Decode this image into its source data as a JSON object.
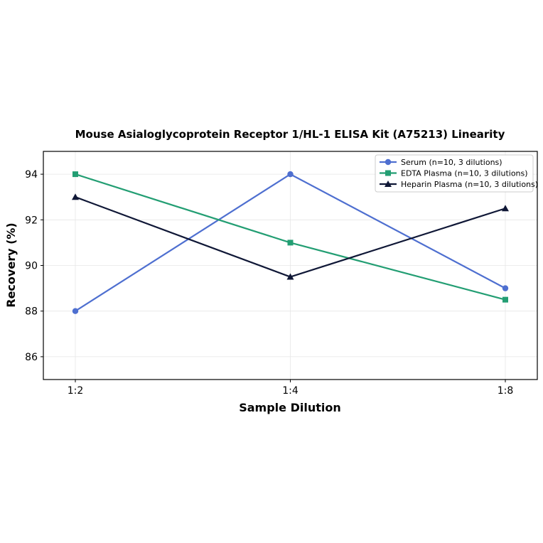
{
  "chart_data": {
    "type": "line",
    "title": "Mouse Asialoglycoprotein Receptor 1/HL-1 ELISA Kit (A75213) Linearity",
    "xlabel": "Sample Dilution",
    "ylabel": "Recovery (%)",
    "categories": [
      "1:2",
      "1:4",
      "1:8"
    ],
    "ylim": [
      85,
      95
    ],
    "yticks": [
      86,
      88,
      90,
      92,
      94
    ],
    "grid": true,
    "legend_position": "top-right",
    "series": [
      {
        "name": "Serum (n=10, 3 dilutions)",
        "values": [
          88,
          94,
          89
        ],
        "color": "#4e6fd0",
        "marker": "circle"
      },
      {
        "name": "EDTA Plasma (n=10, 3 dilutions)",
        "values": [
          94,
          91,
          88.5
        ],
        "color": "#239e73",
        "marker": "square"
      },
      {
        "name": "Heparin Plasma (n=10, 3 dilutions)",
        "values": [
          93,
          89.5,
          92.5
        ],
        "color": "#0f1736",
        "marker": "triangle"
      }
    ]
  }
}
